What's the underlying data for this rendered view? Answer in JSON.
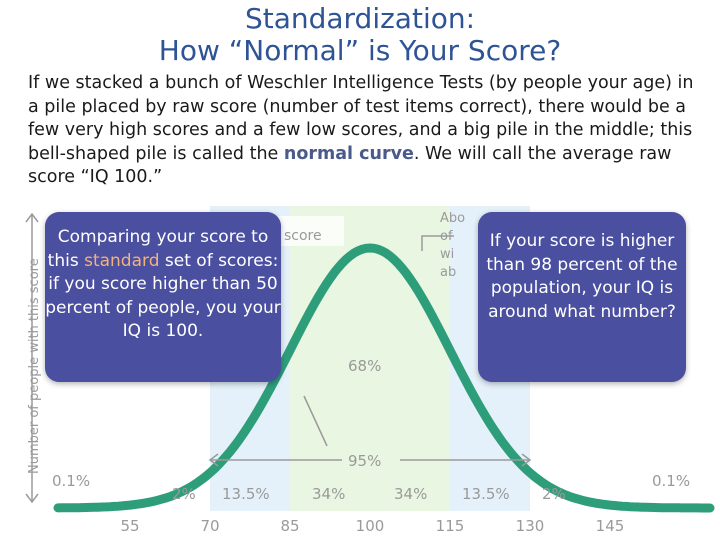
{
  "slide": {
    "title_line1": "Standardization:",
    "title_line2": "How “Normal” is Your Score?",
    "intro_before": "If we stacked a bunch of Weschler Intelligence Tests (by people your age) in a pile placed by raw score (number of test items correct), there would be a few very high scores and a few low scores, and a big pile in the middle; this bell-shaped pile is called the ",
    "intro_term": "normal curve",
    "intro_after": ". We will call the average raw score “IQ 100.”"
  },
  "figure": {
    "y_axis_label": "Number of people with this score",
    "x_ticks": [
      "55",
      "70",
      "85",
      "100",
      "115",
      "130",
      "145"
    ],
    "band_percents": [
      "0.1%",
      "2%",
      "13.5%",
      "34%",
      "34%",
      "13.5%",
      "2%",
      "0.1%"
    ],
    "pct_68": "68%",
    "pct_95": "95%",
    "partial_label_score": "score",
    "partial_label_about": "Abo",
    "partial_label_of": "of",
    "partial_label_wi": "wi",
    "partial_label_ab": "ab",
    "colors": {
      "curve": "#2e9e7a",
      "band_center": "#e9f6e1",
      "band_mid": "#e5f1fa",
      "bubble": "#4a4f9f"
    }
  },
  "bubbles": {
    "left_before": "Comparing your score to this ",
    "left_term": "standard",
    "left_after": " set of scores: if you score higher than 50 percent of people, you your IQ is  100.",
    "right_text": "If your score is higher than 98 percent of the population, your IQ is around what number?"
  }
}
